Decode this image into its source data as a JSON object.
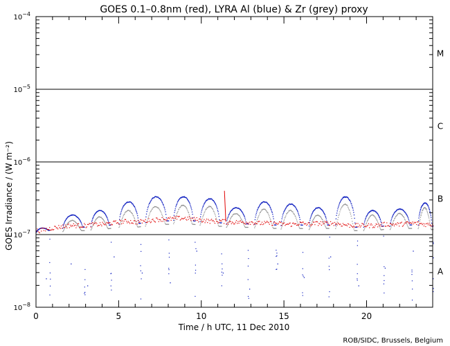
{
  "chart_data": {
    "type": "scatter",
    "title": "GOES 0.1–0.8nm (red), LYRA Al (blue) & Zr (grey) proxy",
    "xlabel": "Time / h UTC, 11 Dec 2010",
    "ylabel": "GOES Irradiance / (W m⁻²)",
    "credit": "ROB/SIDC, Brussels, Belgium",
    "xlim": [
      0,
      24
    ],
    "ylim": [
      1e-08,
      0.0001
    ],
    "yscale": "log",
    "x_ticks": [
      0,
      5,
      10,
      15,
      20
    ],
    "x_tick_labels": [
      "0",
      "5",
      "10",
      "15",
      "20"
    ],
    "y_ticks": [
      {
        "value": 1e-08,
        "base": "10",
        "exp": "−8"
      },
      {
        "value": 1e-07,
        "base": "10",
        "exp": "−7"
      },
      {
        "value": 1e-06,
        "base": "10",
        "exp": "−6"
      },
      {
        "value": 1e-05,
        "base": "10",
        "exp": "−5"
      },
      {
        "value": 0.0001,
        "base": "10",
        "exp": "−4"
      }
    ],
    "flare_class_lines": [
      1e-07,
      1e-06,
      1e-05
    ],
    "flare_classes": [
      {
        "label": "A",
        "value": 3.16e-08
      },
      {
        "label": "B",
        "value": 3.16e-07
      },
      {
        "label": "C",
        "value": 3.16e-06
      },
      {
        "label": "M",
        "value": 3.16e-05
      }
    ],
    "series": [
      {
        "name": "GOES 0.1–0.8nm",
        "color": "#e00000",
        "x": [
          0.2,
          1,
          2,
          3,
          3.5,
          4,
          4.5,
          5,
          5.5,
          6,
          6.5,
          7,
          7.5,
          8,
          8.5,
          9,
          9.5,
          10,
          10.5,
          11,
          11.3,
          11.5,
          12,
          12.5,
          13,
          13.5,
          14,
          14.5,
          15,
          15.5,
          16,
          16.5,
          17,
          17.5,
          18,
          18.5,
          19,
          19.5,
          20,
          20.5,
          21,
          21.5,
          22,
          22.5,
          23,
          23.5,
          24
        ],
        "y": [
          1.15e-07,
          1.25e-07,
          1.35e-07,
          1.35e-07,
          1.4e-07,
          1.4e-07,
          1.45e-07,
          1.5e-07,
          1.55e-07,
          1.5e-07,
          1.55e-07,
          1.6e-07,
          1.65e-07,
          1.65e-07,
          1.7e-07,
          1.7e-07,
          1.65e-07,
          1.6e-07,
          1.55e-07,
          1.55e-07,
          1.55e-07,
          1.5e-07,
          1.5e-07,
          1.5e-07,
          1.5e-07,
          1.45e-07,
          1.45e-07,
          1.45e-07,
          1.4e-07,
          1.4e-07,
          1.45e-07,
          1.4e-07,
          1.45e-07,
          1.45e-07,
          1.45e-07,
          1.4e-07,
          1.35e-07,
          1.35e-07,
          1.35e-07,
          1.35e-07,
          1.4e-07,
          1.4e-07,
          1.4e-07,
          1.45e-07,
          1.45e-07,
          1.4e-07,
          1.4e-07
        ],
        "spikes": [
          {
            "x": 11.4,
            "y": 4e-07
          }
        ]
      },
      {
        "name": "LYRA Al",
        "color": "#1020c0",
        "orbits": [
          {
            "start": 0.0,
            "end": 0.8,
            "peak": 1.25e-07
          },
          {
            "start": 1.6,
            "end": 2.9,
            "peak": 1.9e-07
          },
          {
            "start": 3.3,
            "end": 4.5,
            "peak": 2.2e-07
          },
          {
            "start": 5.0,
            "end": 6.3,
            "peak": 2.9e-07
          },
          {
            "start": 6.6,
            "end": 8.0,
            "peak": 3.4e-07
          },
          {
            "start": 8.3,
            "end": 9.6,
            "peak": 3.4e-07
          },
          {
            "start": 9.9,
            "end": 11.2,
            "peak": 3.2e-07
          },
          {
            "start": 11.5,
            "end": 12.8,
            "peak": 2.4e-07
          },
          {
            "start": 13.2,
            "end": 14.5,
            "peak": 2.9e-07
          },
          {
            "start": 14.8,
            "end": 16.1,
            "peak": 2.7e-07
          },
          {
            "start": 16.5,
            "end": 17.7,
            "peak": 2.4e-07
          },
          {
            "start": 18.1,
            "end": 19.4,
            "peak": 3.4e-07
          },
          {
            "start": 19.8,
            "end": 21.0,
            "peak": 2.2e-07
          },
          {
            "start": 21.4,
            "end": 22.7,
            "peak": 2.3e-07
          },
          {
            "start": 23.1,
            "end": 24.0,
            "peak": 2.8e-07
          }
        ],
        "dropouts": [
          {
            "x": 0.6,
            "y": 2.5e-08
          },
          {
            "x": 2.1,
            "y": 4e-08
          },
          {
            "x": 3.1,
            "y": 2e-08
          },
          {
            "x": 4.7,
            "y": 5e-08
          },
          {
            "x": 6.4,
            "y": 3e-08
          },
          {
            "x": 8.1,
            "y": 2.2e-08
          },
          {
            "x": 9.7,
            "y": 6e-08
          },
          {
            "x": 11.3,
            "y": 3e-08
          },
          {
            "x": 12.9,
            "y": 1.8e-08
          },
          {
            "x": 14.6,
            "y": 4e-08
          },
          {
            "x": 16.2,
            "y": 2.6e-08
          },
          {
            "x": 17.8,
            "y": 5e-08
          },
          {
            "x": 19.5,
            "y": 2e-08
          },
          {
            "x": 21.1,
            "y": 3.5e-08
          },
          {
            "x": 22.8,
            "y": 6e-08
          }
        ]
      },
      {
        "name": "LYRA Zr",
        "color": "#8c8c8c",
        "orbits": [
          {
            "start": 1.6,
            "end": 2.9,
            "peak": 1.6e-07
          },
          {
            "start": 3.3,
            "end": 4.5,
            "peak": 1.8e-07
          },
          {
            "start": 5.0,
            "end": 6.3,
            "peak": 2.2e-07
          },
          {
            "start": 6.6,
            "end": 8.0,
            "peak": 2.5e-07
          },
          {
            "start": 8.3,
            "end": 9.6,
            "peak": 2.6e-07
          },
          {
            "start": 9.9,
            "end": 11.2,
            "peak": 2.5e-07
          },
          {
            "start": 11.5,
            "end": 12.8,
            "peak": 2e-07
          },
          {
            "start": 13.2,
            "end": 14.5,
            "peak": 2.3e-07
          },
          {
            "start": 14.8,
            "end": 16.1,
            "peak": 2.2e-07
          },
          {
            "start": 16.5,
            "end": 17.7,
            "peak": 1.9e-07
          },
          {
            "start": 18.1,
            "end": 19.4,
            "peak": 2.7e-07
          },
          {
            "start": 19.8,
            "end": 21.0,
            "peak": 1.9e-07
          },
          {
            "start": 21.4,
            "end": 22.7,
            "peak": 2e-07
          },
          {
            "start": 23.1,
            "end": 24.0,
            "peak": 2.4e-07
          }
        ]
      }
    ]
  }
}
